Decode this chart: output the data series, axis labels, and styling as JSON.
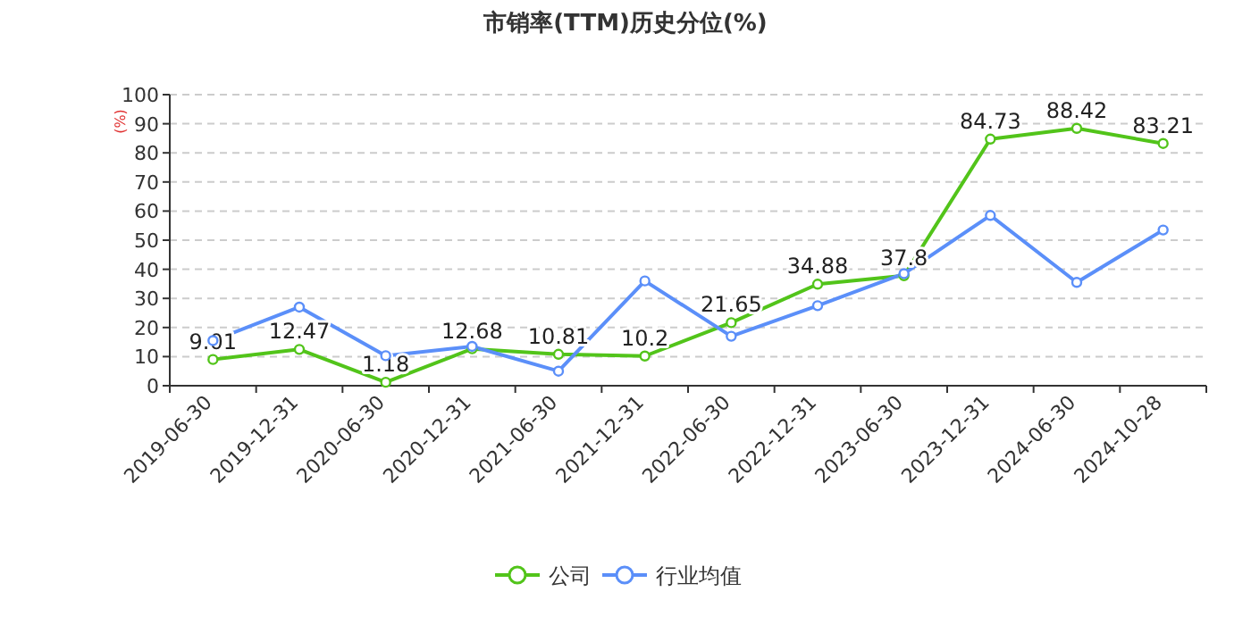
{
  "chart_data": {
    "type": "line",
    "title": "市销率(TTM)历史分位(%)",
    "ylabel": "(%)",
    "categories": [
      "2019-06-30",
      "2019-12-31",
      "2020-06-30",
      "2020-12-31",
      "2021-06-30",
      "2021-12-31",
      "2022-06-30",
      "2022-12-31",
      "2023-06-30",
      "2023-12-31",
      "2024-06-30",
      "2024-10-28"
    ],
    "series": [
      {
        "name": "公司",
        "color": "#52c41a",
        "values": [
          9.01,
          12.47,
          1.18,
          12.68,
          10.81,
          10.2,
          21.65,
          34.88,
          37.8,
          84.73,
          88.42,
          83.21
        ],
        "value_labels": [
          "9.01",
          "12.47",
          "1.18",
          "12.68",
          "10.81",
          "10.2",
          "21.65",
          "34.88",
          "37.8",
          "84.73",
          "88.42",
          "83.21"
        ]
      },
      {
        "name": "行业均值",
        "color": "#5b8ff9",
        "values": [
          15.5,
          27,
          10.3,
          13.5,
          5,
          36,
          17,
          27.5,
          38.5,
          58.5,
          35.5,
          53.5
        ]
      }
    ],
    "ylim": [
      0,
      100
    ],
    "yticks": [
      0,
      10,
      20,
      30,
      40,
      50,
      60,
      70,
      80,
      90,
      100
    ],
    "grid": "y",
    "legend": "bottom",
    "marker": "circle",
    "line_style": "solid"
  }
}
